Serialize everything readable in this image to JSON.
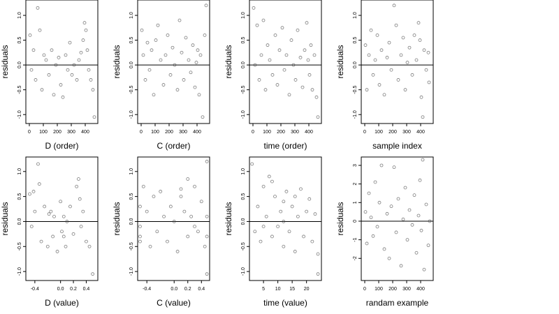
{
  "chart_data": [
    {
      "type": "scatter",
      "x_label": "D (order)",
      "y_label": "residuals",
      "color": "#444444",
      "hline": 0,
      "xlim": [
        -25,
        490
      ],
      "ylim": [
        -1.18,
        1.31
      ],
      "xticks": [
        0,
        100,
        200,
        300,
        400
      ],
      "yticks": [
        {
          "value": -1,
          "label": "-1.0"
        },
        -0.5,
        {
          "value": 0,
          "label": "0.0"
        },
        0.5,
        {
          "value": 1,
          "label": "1.0"
        }
      ],
      "x": [
        5,
        15,
        30,
        45,
        60,
        75,
        90,
        105,
        120,
        140,
        160,
        175,
        190,
        210,
        225,
        240,
        260,
        275,
        290,
        305,
        320,
        340,
        355,
        370,
        385,
        395,
        405,
        415,
        425,
        440,
        455,
        465
      ],
      "y": [
        0.6,
        -0.1,
        0.3,
        -0.3,
        1.15,
        0.7,
        -0.5,
        0.2,
        0.1,
        -0.2,
        0.3,
        -0.6,
        0.0,
        0.15,
        -0.4,
        -0.65,
        0.2,
        -0.1,
        0.45,
        -0.2,
        0.0,
        -0.3,
        0.1,
        0.25,
        0.5,
        0.85,
        0.7,
        0.3,
        -0.1,
        -0.3,
        -0.5,
        -1.05
      ]
    },
    {
      "type": "scatter",
      "x_label": "C (order)",
      "y_label": "residuals",
      "color": "#444444",
      "hline": 0,
      "xlim": [
        -25,
        490
      ],
      "ylim": [
        -1.18,
        1.31
      ],
      "xticks": [
        0,
        100,
        200,
        300,
        400
      ],
      "yticks": [
        {
          "value": -1,
          "label": "-1.0"
        },
        -0.5,
        {
          "value": 0,
          "label": "0.0"
        },
        0.5,
        {
          "value": 1,
          "label": "1.0"
        }
      ],
      "x": [
        5,
        15,
        30,
        45,
        60,
        75,
        90,
        105,
        120,
        140,
        160,
        175,
        190,
        210,
        225,
        240,
        260,
        275,
        290,
        305,
        320,
        340,
        355,
        370,
        385,
        395,
        405,
        415,
        425,
        440,
        455,
        465
      ],
      "y": [
        0.7,
        0.2,
        -0.3,
        0.45,
        -0.1,
        0.3,
        -0.6,
        0.5,
        0.8,
        0.1,
        -0.4,
        0.2,
        0.6,
        -0.2,
        0.35,
        0.0,
        -0.5,
        0.9,
        0.25,
        -0.3,
        0.55,
        0.1,
        -0.15,
        0.4,
        -0.45,
        0.05,
        0.3,
        -0.6,
        0.2,
        -1.05,
        0.6,
        1.2
      ]
    },
    {
      "type": "scatter",
      "x_label": "time (order)",
      "y_label": "residuals",
      "color": "#444444",
      "hline": 0,
      "xlim": [
        -25,
        490
      ],
      "ylim": [
        -1.18,
        1.31
      ],
      "xticks": [
        0,
        100,
        200,
        300,
        400
      ],
      "yticks": [
        {
          "value": -1,
          "label": "-1.0"
        },
        -0.5,
        {
          "value": 0,
          "label": "0.0"
        },
        0.5,
        {
          "value": 1,
          "label": "1.0"
        }
      ],
      "x": [
        5,
        15,
        30,
        45,
        60,
        75,
        90,
        105,
        120,
        140,
        160,
        175,
        190,
        210,
        225,
        240,
        260,
        275,
        290,
        305,
        320,
        340,
        355,
        370,
        385,
        395,
        405,
        415,
        425,
        440,
        455,
        465
      ],
      "y": [
        1.15,
        0.0,
        0.8,
        -0.3,
        0.2,
        0.9,
        -0.5,
        0.4,
        0.1,
        -0.2,
        0.6,
        -0.4,
        0.3,
        0.75,
        -0.1,
        0.2,
        -0.6,
        0.5,
        0.0,
        -0.3,
        0.7,
        0.15,
        -0.45,
        0.3,
        0.85,
        0.1,
        -0.2,
        0.4,
        -0.5,
        0.2,
        -0.65,
        -1.05
      ]
    },
    {
      "type": "scatter",
      "x_label": "sample index",
      "y_label": "residuals",
      "color": "#444444",
      "hline": 0,
      "xlim": [
        -25,
        490
      ],
      "ylim": [
        -1.18,
        1.31
      ],
      "xticks": [
        0,
        100,
        200,
        300,
        400
      ],
      "yticks": [
        {
          "value": -1,
          "label": "-1.0"
        },
        -0.5,
        {
          "value": 0,
          "label": "0.0"
        },
        0.5,
        {
          "value": 1,
          "label": "1.0"
        }
      ],
      "x": [
        5,
        15,
        30,
        45,
        60,
        75,
        90,
        105,
        120,
        140,
        160,
        175,
        190,
        210,
        225,
        240,
        260,
        275,
        290,
        305,
        320,
        340,
        355,
        370,
        385,
        395,
        405,
        415,
        425,
        440,
        455,
        460
      ],
      "y": [
        0.4,
        -0.5,
        0.2,
        0.7,
        -0.2,
        0.1,
        0.6,
        -0.4,
        0.3,
        -0.6,
        0.15,
        0.45,
        -0.1,
        1.2,
        0.8,
        -0.3,
        0.2,
        0.55,
        -0.5,
        0.05,
        0.35,
        -0.2,
        0.6,
        0.1,
        0.85,
        0.5,
        -0.65,
        -1.05,
        0.3,
        -0.1,
        0.25,
        -0.35
      ]
    },
    {
      "type": "scatter",
      "x_label": "D (value)",
      "y_label": "residuals",
      "color": "#444444",
      "hline": 0,
      "xlim": [
        -0.54,
        0.58
      ],
      "ylim": [
        -1.18,
        1.29
      ],
      "xticks": [
        -0.4,
        {
          "value": 0,
          "label": "0.0"
        },
        0.2,
        0.4
      ],
      "yticks": [
        {
          "value": -1,
          "label": "-1.0"
        },
        -0.5,
        {
          "value": 0,
          "label": "0.0"
        },
        0.5,
        {
          "value": 1,
          "label": "1.0"
        }
      ],
      "x": [
        -0.48,
        -0.45,
        -0.42,
        -0.4,
        -0.35,
        -0.3,
        -0.25,
        -0.2,
        -0.15,
        -0.12,
        -0.1,
        -0.05,
        0,
        0.02,
        0.05,
        0.08,
        0.1,
        0.15,
        0.2,
        0.25,
        0.28,
        0.3,
        0.32,
        0.35,
        0.4,
        0.45,
        0.5,
        -0.33,
        -0.18,
        0.05
      ],
      "y": [
        0.55,
        -0.1,
        0.6,
        0.2,
        1.15,
        -0.4,
        0.3,
        -0.5,
        0.2,
        -0.3,
        0.1,
        -0.6,
        0.4,
        -0.2,
        0.1,
        -0.5,
        0.0,
        0.3,
        -0.25,
        0.7,
        0.85,
        0.45,
        -0.1,
        0.2,
        -0.4,
        -0.5,
        -1.05,
        0.75,
        0.15,
        -0.3
      ]
    },
    {
      "type": "scatter",
      "x_label": "C (value)",
      "y_label": "residuals",
      "color": "#444444",
      "hline": 0,
      "xlim": [
        -0.535,
        0.52
      ],
      "ylim": [
        -1.18,
        1.29
      ],
      "xticks": [
        -0.4,
        {
          "value": 0,
          "label": "0.0"
        },
        0.2,
        0.4
      ],
      "yticks": [
        {
          "value": -1,
          "label": "-1.0"
        },
        -0.5,
        {
          "value": 0,
          "label": "0.0"
        },
        0.5,
        {
          "value": 1,
          "label": "1.0"
        }
      ],
      "x": [
        -0.5,
        -0.5,
        -0.5,
        -0.45,
        -0.4,
        -0.35,
        -0.3,
        -0.25,
        -0.2,
        -0.15,
        -0.1,
        -0.05,
        0,
        0.05,
        0.1,
        0.15,
        0.2,
        0.2,
        0.25,
        0.3,
        0.35,
        0.4,
        0.45,
        0.48,
        0.48,
        0.48,
        -0.5,
        0.1,
        0.3,
        0.48
      ],
      "y": [
        0.3,
        -0.3,
        -0.1,
        0.7,
        0.2,
        -0.5,
        0.5,
        -0.2,
        0.6,
        0.1,
        -0.4,
        0.3,
        0.0,
        -0.6,
        0.5,
        0.2,
        0.85,
        -0.3,
        0.1,
        0.7,
        -0.2,
        0.4,
        -0.5,
        1.2,
        -1.05,
        0.1,
        -0.4,
        0.65,
        -0.1,
        -0.3
      ]
    },
    {
      "type": "scatter",
      "x_label": "time (value)",
      "y_label": "residuals",
      "color": "#444444",
      "hline": 0,
      "xlim": [
        0.1,
        25.2
      ],
      "ylim": [
        -1.18,
        1.29
      ],
      "xticks": [
        5,
        10,
        15,
        20
      ],
      "yticks": [
        {
          "value": -1,
          "label": "-1.0"
        },
        -0.5,
        {
          "value": 0,
          "label": "0.0"
        },
        0.5,
        {
          "value": 1,
          "label": "1.0"
        }
      ],
      "x": [
        1,
        2,
        3,
        4,
        5,
        6,
        7,
        8,
        9,
        10,
        11,
        12,
        12,
        12,
        13,
        14,
        15,
        16,
        17,
        18,
        19,
        20,
        21,
        22,
        23,
        24,
        24,
        8,
        5,
        16
      ],
      "y": [
        1.15,
        -0.2,
        0.3,
        -0.4,
        0.7,
        0.1,
        0.9,
        -0.3,
        0.5,
        -0.1,
        0.2,
        -0.5,
        0.4,
        0.0,
        0.6,
        -0.2,
        0.3,
        -0.6,
        0.1,
        0.65,
        -0.3,
        0.2,
        0.45,
        -0.4,
        0.15,
        -0.65,
        -1.05,
        0.8,
        -0.1,
        0.5
      ]
    },
    {
      "type": "scatter",
      "x_label": "randam example",
      "y_label": "residuals",
      "color": "#444444",
      "hline": 0,
      "xlim": [
        -25,
        490
      ],
      "ylim": [
        -3.19,
        3.45
      ],
      "xticks": [
        0,
        100,
        200,
        300,
        400
      ],
      "yticks": [
        -2,
        -1,
        0,
        1,
        2,
        3
      ],
      "x": [
        5,
        15,
        30,
        45,
        60,
        75,
        90,
        105,
        120,
        140,
        160,
        175,
        190,
        210,
        225,
        240,
        260,
        275,
        290,
        305,
        320,
        340,
        355,
        370,
        385,
        395,
        405,
        415,
        425,
        440,
        455,
        465
      ],
      "y": [
        0.5,
        -1.2,
        1.5,
        0.2,
        -0.8,
        2.1,
        -0.3,
        1.0,
        3.0,
        -1.5,
        0.4,
        -2.0,
        0.8,
        2.9,
        -0.6,
        1.2,
        -2.4,
        0.1,
        1.8,
        -1.0,
        0.6,
        -0.2,
        1.4,
        -1.7,
        0.3,
        2.2,
        -0.5,
        3.3,
        -2.6,
        0.9,
        -1.3,
        0.0
      ]
    }
  ]
}
